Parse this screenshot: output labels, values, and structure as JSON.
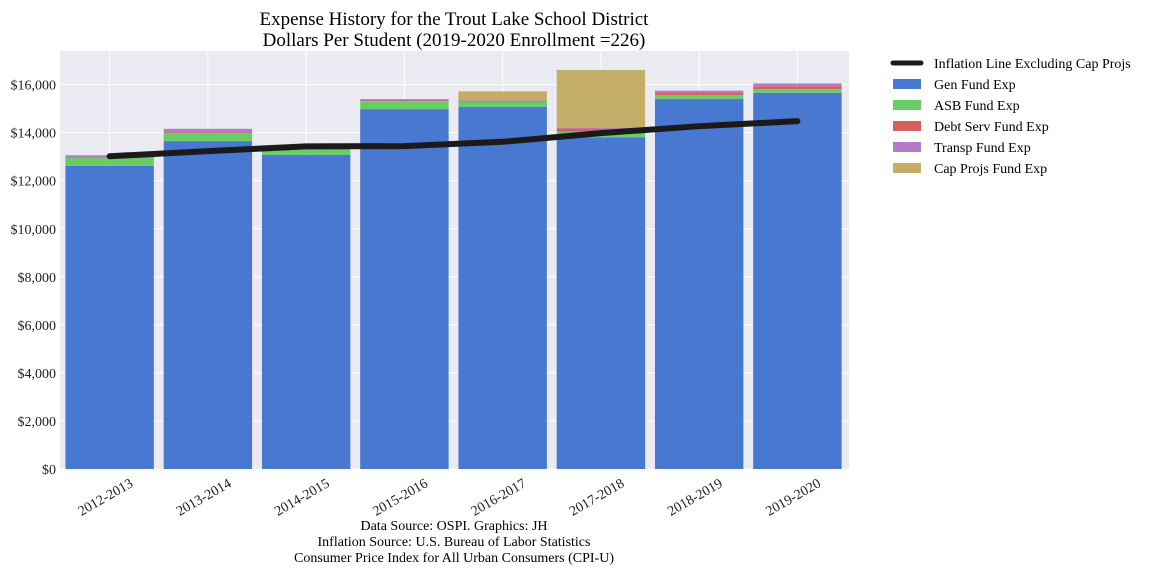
{
  "chart_data": {
    "type": "bar",
    "stacked": true,
    "title": "Expense History for the Trout Lake School District",
    "subtitle": "Dollars Per Student (2019-2020 Enrollment =226)",
    "categories": [
      "2012-2013",
      "2013-2014",
      "2014-2015",
      "2015-2016",
      "2016-2017",
      "2017-2018",
      "2018-2019",
      "2019-2020"
    ],
    "ylim": [
      0,
      17400
    ],
    "yticks": [
      0,
      2000,
      4000,
      6000,
      8000,
      10000,
      12000,
      14000,
      16000
    ],
    "ytick_labels": [
      "$0",
      "$2,000",
      "$4,000",
      "$6,000",
      "$8,000",
      "$10,000",
      "$12,000",
      "$14,000",
      "$16,000"
    ],
    "grid": true,
    "legend_position": "outside-right",
    "series": [
      {
        "name": "Gen Fund Exp",
        "color": "#4878cf",
        "values": [
          12620,
          13650,
          13080,
          14980,
          15080,
          13800,
          15400,
          15660
        ]
      },
      {
        "name": "ASB Fund Exp",
        "color": "#6acc65",
        "values": [
          330,
          330,
          210,
          340,
          220,
          240,
          170,
          150
        ]
      },
      {
        "name": "Debt Serv Fund Exp",
        "color": "#d65f5f",
        "values": [
          30,
          30,
          30,
          20,
          20,
          130,
          100,
          120
        ]
      },
      {
        "name": "Transp Fund Exp",
        "color": "#b47cc7",
        "values": [
          80,
          150,
          20,
          60,
          20,
          40,
          80,
          120
        ]
      },
      {
        "name": "Cap Projs Fund Exp",
        "color": "#c4ad66",
        "values": [
          0,
          0,
          0,
          0,
          380,
          2400,
          0,
          0
        ]
      }
    ],
    "line": {
      "name": "Inflation Line Excluding Cap Projs",
      "color": "#1a1a1a",
      "values": [
        13020,
        13230,
        13430,
        13440,
        13620,
        13980,
        14270,
        14480
      ]
    }
  },
  "sources": [
    "Data Source: OSPI. Graphics: JH",
    "Inflation Source: U.S. Bureau of Labor Statistics",
    "Consumer Price Index for All Urban Consumers (CPI-U)"
  ]
}
